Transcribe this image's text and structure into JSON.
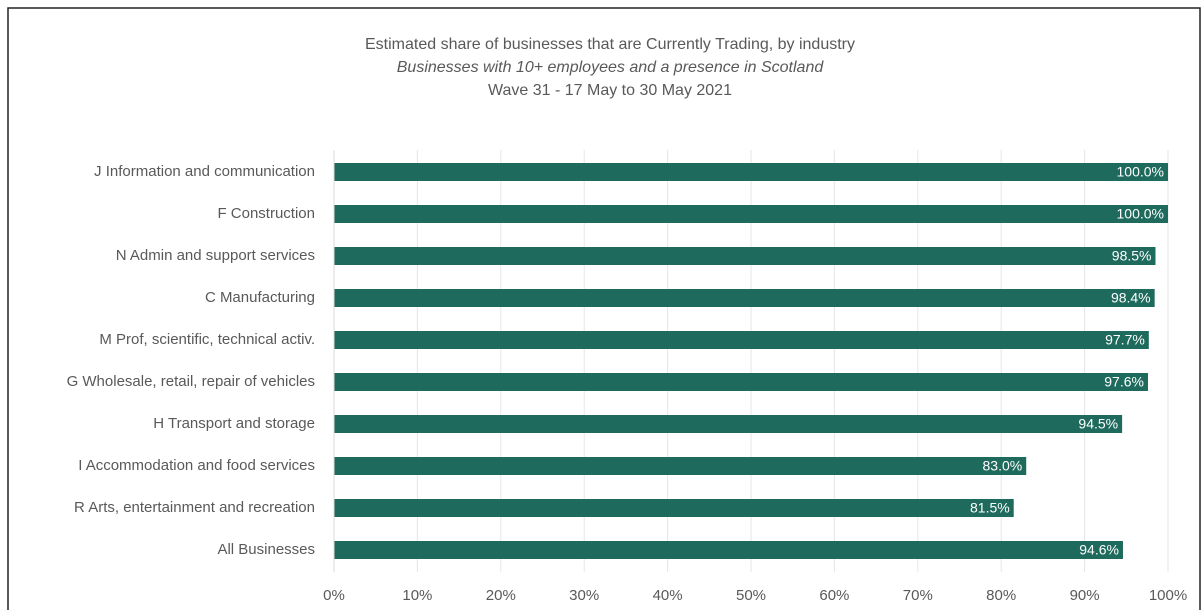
{
  "chart_data": {
    "type": "barh",
    "title": "Estimated share of businesses that are Currently Trading, by industry",
    "subtitle": "Businesses with 10+ employees and a presence in Scotland",
    "subtitle2": "Wave 31 - 17 May to 30 May 2021",
    "categories": [
      "J Information and communication",
      "F Construction",
      "N Admin and support services",
      "C Manufacturing",
      "M Prof, scientific, technical activ.",
      "G Wholesale, retail, repair of vehicles",
      "H Transport and storage",
      "I Accommodation and food services",
      "R Arts, entertainment and recreation",
      "All Businesses"
    ],
    "values": [
      100,
      100,
      98.5,
      98.4,
      97.7,
      97.6,
      94.5,
      83.0,
      81.5,
      94.6
    ],
    "value_labels": [
      "100.0%",
      "100.0%",
      "98.5%",
      "98.4%",
      "97.7%",
      "97.6%",
      "94.5%",
      "83.0%",
      "81.5%",
      "94.6%"
    ],
    "color": "#1e6a5d",
    "xlim": [
      0,
      100
    ],
    "xticks": [
      {
        "value": 0,
        "label": "0%"
      },
      {
        "value": 10,
        "label": "10%"
      },
      {
        "value": 20,
        "label": "20%"
      },
      {
        "value": 30,
        "label": "30%"
      },
      {
        "value": 40,
        "label": "40%"
      },
      {
        "value": 50,
        "label": "50%"
      },
      {
        "value": 60,
        "label": "60%"
      },
      {
        "value": 70,
        "label": "70%"
      },
      {
        "value": 80,
        "label": "80%"
      },
      {
        "value": 90,
        "label": "90%"
      },
      {
        "value": 100,
        "label": "100%"
      }
    ],
    "grid": true
  }
}
